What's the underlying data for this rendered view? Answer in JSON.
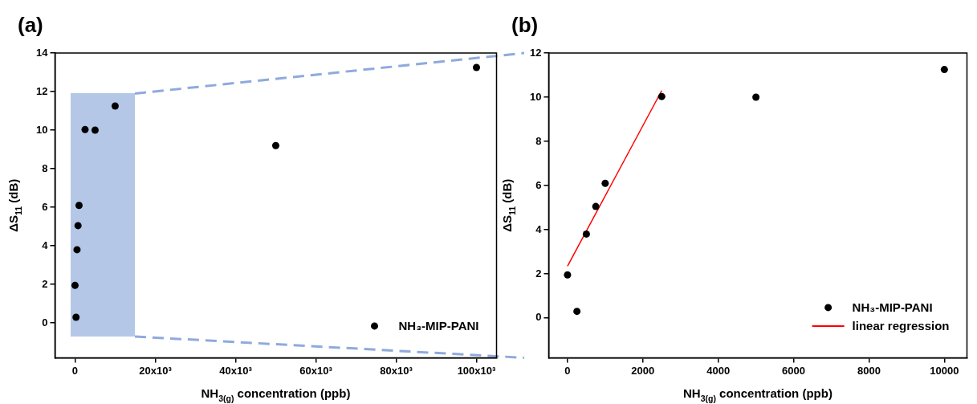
{
  "chart_data": [
    {
      "type": "scatter",
      "title": "(a)",
      "xlabel": "NH$_{3(g)}$ concentration (ppb)",
      "ylabel": "ΔS$_{11}$ (dB)",
      "x": [
        0,
        250,
        500,
        750,
        1000,
        2500,
        5000,
        10000,
        50000,
        100000
      ],
      "series": [
        {
          "name": "NH₃-MIP-PANI",
          "color": "#000000",
          "values": [
            1.95,
            0.3,
            3.8,
            5.05,
            6.1,
            10.03,
            10.0,
            11.25,
            9.2,
            13.25
          ]
        }
      ],
      "xlim": [
        -5000,
        105000
      ],
      "xticks": [
        0,
        {
          "value": 20000,
          "label": "20x10³"
        },
        {
          "value": 40000,
          "label": "40x10³"
        },
        {
          "value": 60000,
          "label": "60x10³"
        },
        {
          "value": 80000,
          "label": "80x10³"
        },
        {
          "value": 100000,
          "label": "100x10³"
        }
      ],
      "ylim": [
        -1.8,
        14
      ],
      "yticks": [
        0,
        2,
        4,
        6,
        8,
        10,
        12,
        14
      ],
      "grid": false,
      "legend": "bottom right",
      "marker": "circle"
    },
    {
      "type": "scatter",
      "title": "(b)",
      "xlabel": "NH$_{3(g)}$ concentration (ppb)",
      "ylabel": "ΔS$_{11}$ (dB)",
      "x": [
        0,
        250,
        500,
        750,
        1000,
        2500,
        5000,
        10000
      ],
      "series": [
        {
          "name": "NH₃-MIP-PANI",
          "color": "#000000",
          "values": [
            1.95,
            0.3,
            3.8,
            5.05,
            6.1,
            10.03,
            10.0,
            11.25
          ]
        },
        {
          "name": "linear regression",
          "type": "line",
          "color": "#ff0000",
          "x": [
            0,
            2500
          ],
          "values": [
            2.35,
            10.3
          ],
          "marker": "none"
        }
      ],
      "xlim": [
        -500,
        10600
      ],
      "xticks": [
        0,
        2000,
        4000,
        6000,
        8000,
        10000
      ],
      "ylim": [
        -1.8,
        12
      ],
      "yticks": [
        0,
        2,
        4,
        6,
        8,
        10,
        12
      ],
      "grid": false,
      "legend": "bottom right",
      "marker": "circle"
    }
  ]
}
